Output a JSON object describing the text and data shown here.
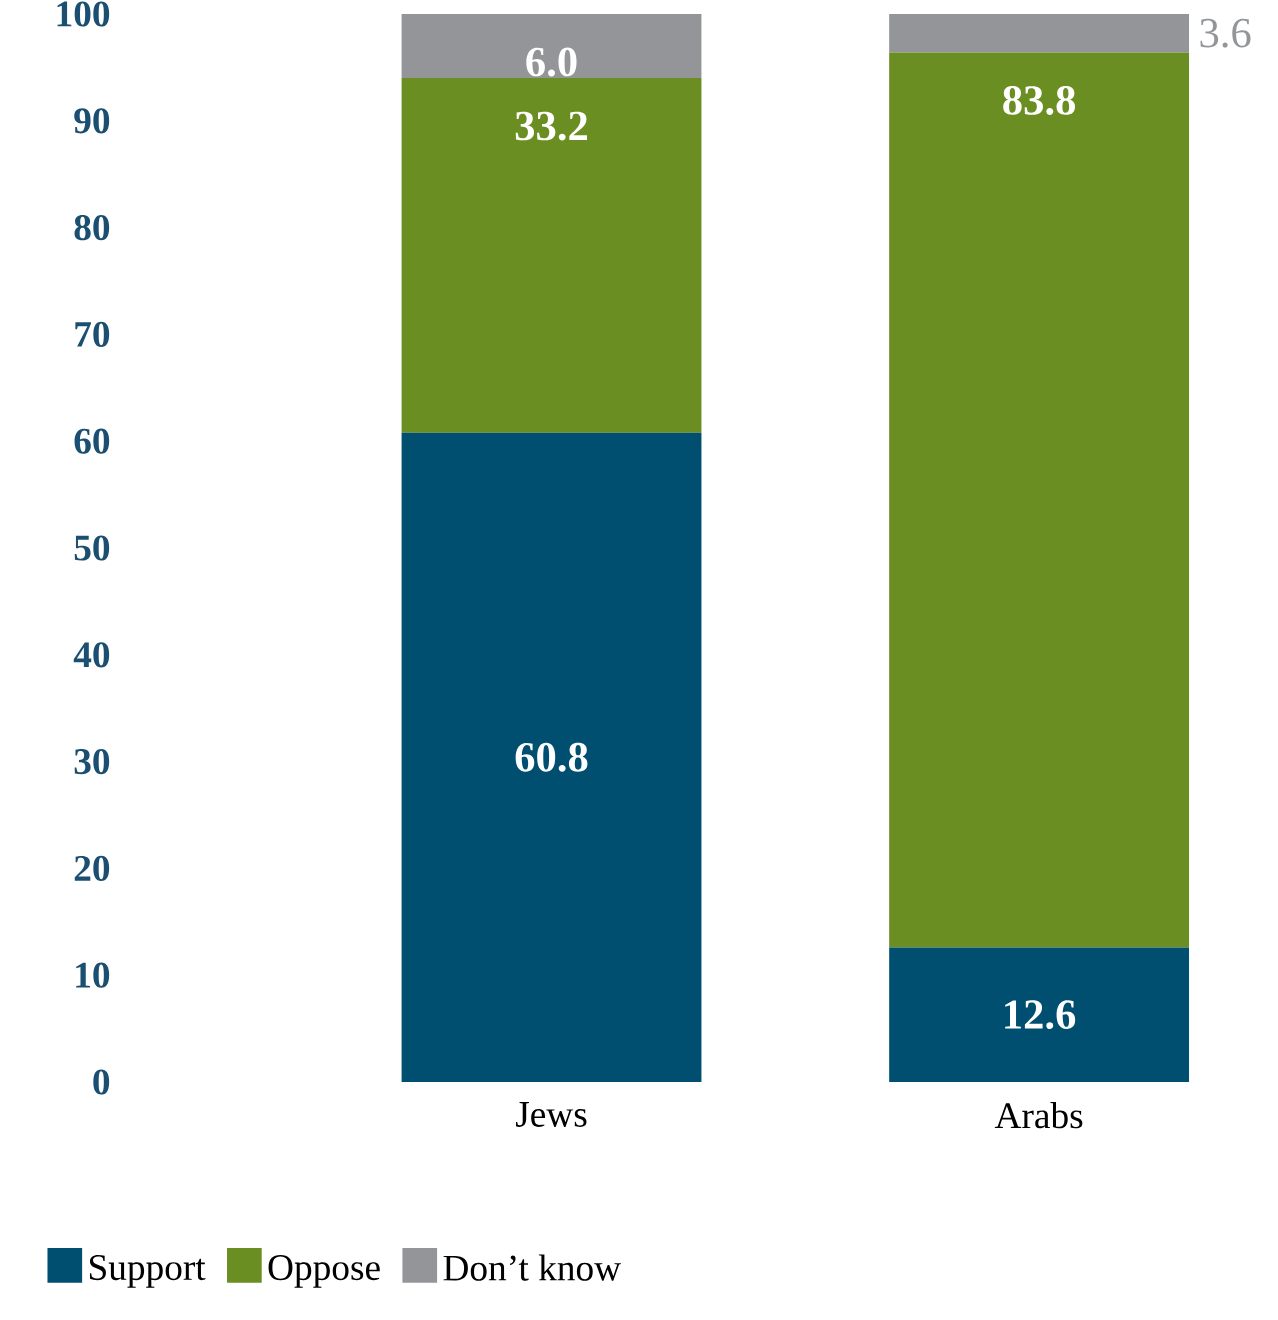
{
  "chart_data": {
    "type": "bar",
    "stacked": true,
    "categories": [
      "Jews",
      "Arabs"
    ],
    "series": [
      {
        "name": "Support",
        "color": "#004f71",
        "values": [
          60.8,
          12.6
        ],
        "value_labels": [
          "60.8",
          "12.6"
        ]
      },
      {
        "name": "Oppose",
        "color": "#6b8e23",
        "values": [
          33.2,
          83.8
        ],
        "value_labels": [
          "33.2",
          "83.8"
        ]
      },
      {
        "name": "Don’t know",
        "color": "#939598",
        "values": [
          6.0,
          3.6
        ],
        "value_labels": [
          "6.0",
          "3.6"
        ]
      }
    ],
    "ylim": [
      0,
      100
    ],
    "yticks": [
      0,
      10,
      20,
      30,
      40,
      50,
      60,
      70,
      80,
      90,
      100
    ],
    "legend": "bottom",
    "grid": false
  }
}
